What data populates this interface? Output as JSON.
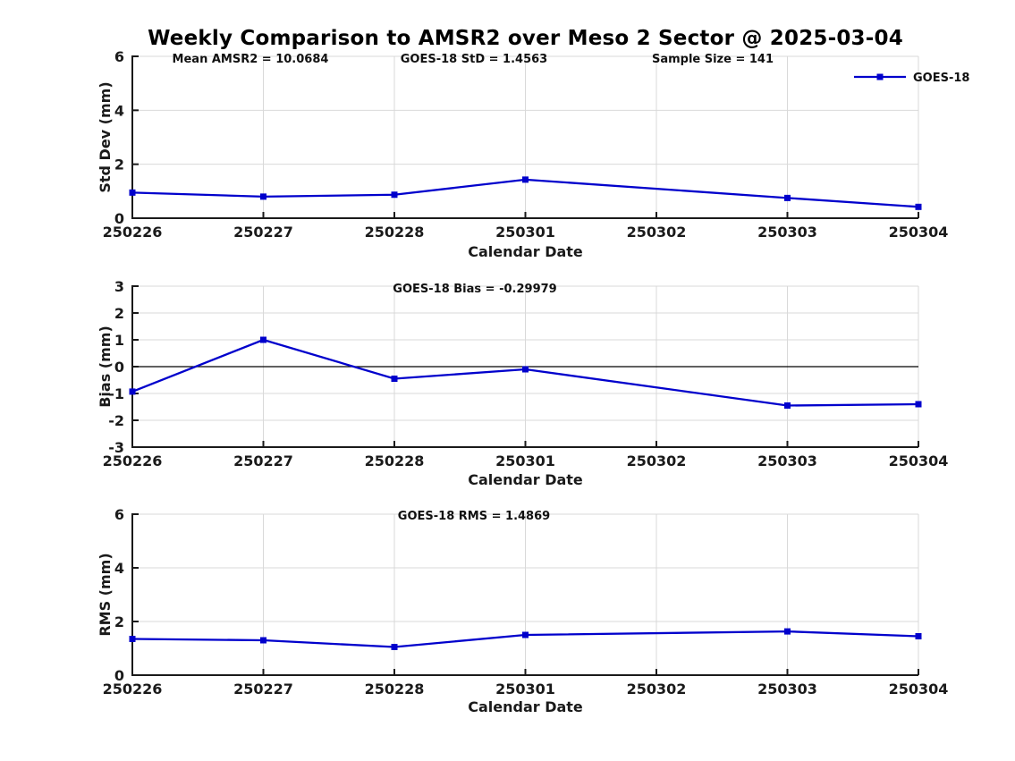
{
  "title": "Weekly Comparison to AMSR2 over Meso 2 Sector @ 2025-03-04",
  "legend": {
    "label": "GOES-18",
    "position": "top-right",
    "color": "#0000cc"
  },
  "colors": {
    "series_blue": "#0000cc",
    "grid_gray": "#d9d9d9",
    "axis_black": "#1a1a1a"
  },
  "chart_data": [
    {
      "type": "line",
      "categories": [
        "250226",
        "250227",
        "250228",
        "250301",
        "250302",
        "250303",
        "250304"
      ],
      "series": [
        {
          "name": "GOES-18",
          "x": [
            "250226",
            "250227",
            "250228",
            "250301",
            "250303",
            "250304"
          ],
          "values": [
            0.95,
            0.8,
            0.87,
            1.43,
            0.75,
            0.42
          ]
        }
      ],
      "xlabel": "Calendar Date",
      "ylabel": "Std Dev (mm)",
      "ylim": [
        0,
        6
      ],
      "yticks": [
        0,
        2,
        4,
        6
      ],
      "grid": true,
      "zero_line": false,
      "annotations": [
        "Mean AMSR2 = 10.0684",
        "GOES-18 StD = 1.4563",
        "Sample Size = 141"
      ]
    },
    {
      "type": "line",
      "categories": [
        "250226",
        "250227",
        "250228",
        "250301",
        "250302",
        "250303",
        "250304"
      ],
      "series": [
        {
          "name": "GOES-18",
          "x": [
            "250226",
            "250227",
            "250228",
            "250301",
            "250303",
            "250304"
          ],
          "values": [
            -0.93,
            1.0,
            -0.45,
            -0.1,
            -1.45,
            -1.4
          ]
        }
      ],
      "xlabel": "Calendar Date",
      "ylabel": "Bias (mm)",
      "ylim": [
        -3,
        3
      ],
      "yticks": [
        -3,
        -2,
        -1,
        0,
        1,
        2,
        3
      ],
      "grid": true,
      "zero_line": true,
      "annotations": [
        "GOES-18 Bias  = -0.29979"
      ]
    },
    {
      "type": "line",
      "categories": [
        "250226",
        "250227",
        "250228",
        "250301",
        "250302",
        "250303",
        "250304"
      ],
      "series": [
        {
          "name": "GOES-18",
          "x": [
            "250226",
            "250227",
            "250228",
            "250301",
            "250303",
            "250304"
          ],
          "values": [
            1.35,
            1.3,
            1.05,
            1.5,
            1.63,
            1.45
          ]
        }
      ],
      "xlabel": "Calendar Date",
      "ylabel": "RMS (mm)",
      "ylim": [
        0,
        6
      ],
      "yticks": [
        0,
        2,
        4,
        6
      ],
      "grid": true,
      "zero_line": false,
      "annotations": [
        "GOES-18 RMS = 1.4869"
      ]
    }
  ]
}
